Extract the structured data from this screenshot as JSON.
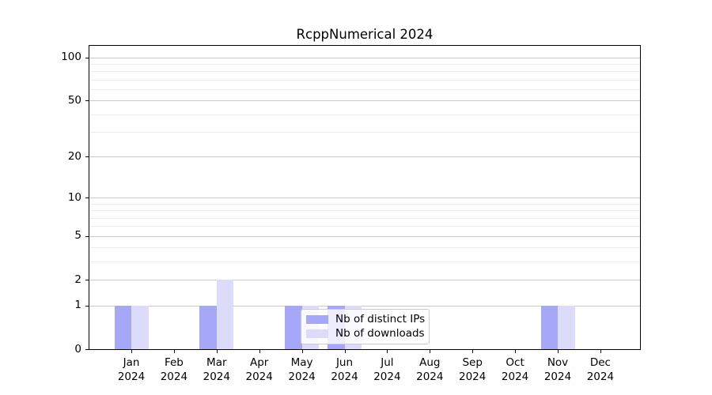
{
  "chart_data": {
    "type": "bar",
    "title": "RcppNumerical 2024",
    "x_tick_labels": [
      {
        "month": "Jan",
        "year": "2024"
      },
      {
        "month": "Feb",
        "year": "2024"
      },
      {
        "month": "Mar",
        "year": "2024"
      },
      {
        "month": "Apr",
        "year": "2024"
      },
      {
        "month": "May",
        "year": "2024"
      },
      {
        "month": "Jun",
        "year": "2024"
      },
      {
        "month": "Jul",
        "year": "2024"
      },
      {
        "month": "Aug",
        "year": "2024"
      },
      {
        "month": "Sep",
        "year": "2024"
      },
      {
        "month": "Oct",
        "year": "2024"
      },
      {
        "month": "Nov",
        "year": "2024"
      },
      {
        "month": "Dec",
        "year": "2024"
      }
    ],
    "series": [
      {
        "name": "Nb of distinct IPs",
        "color": "#a7a7f7",
        "values": [
          1,
          0,
          1,
          0,
          1,
          1,
          0,
          0,
          0,
          0,
          1,
          0
        ]
      },
      {
        "name": "Nb of downloads",
        "color": "#dcdcfa",
        "values": [
          1,
          0,
          2,
          0,
          1,
          1,
          0,
          0,
          0,
          0,
          1,
          0
        ]
      }
    ],
    "y_axis": {
      "scale": "log1p",
      "ticks": [
        0,
        1,
        2,
        5,
        10,
        20,
        50,
        100
      ],
      "minor_ticks": [
        3,
        4,
        6,
        7,
        8,
        9,
        30,
        40,
        60,
        70,
        80,
        90
      ],
      "lim": [
        0,
        120
      ]
    },
    "grid": {
      "major_color": "#c9c9c9",
      "minor_color": "#ededed"
    },
    "legend_position": "lower-center",
    "colors": {
      "axis": "#000000",
      "legend_border": "#cccccc",
      "background": "#ffffff"
    }
  }
}
